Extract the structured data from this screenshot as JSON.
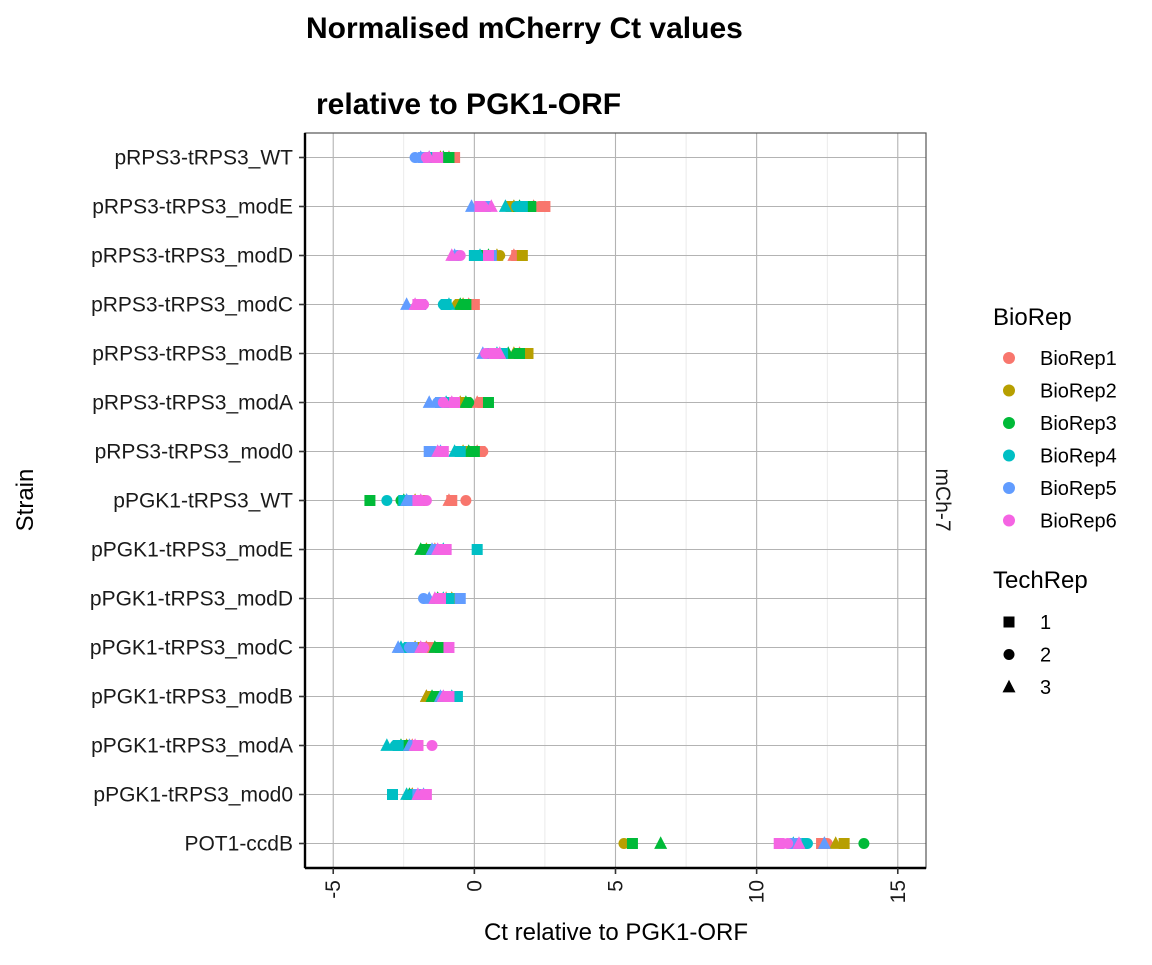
{
  "chart_data": {
    "type": "scatter",
    "title_lines": [
      "Normalised mCherry Ct values",
      "relative to PGK1-ORF"
    ],
    "xlabel": "Ct relative to PGK1-ORF",
    "ylabel": "Strain",
    "facet_label": "mCh-7",
    "xlim": [
      -6,
      16
    ],
    "x_ticks": [
      -5,
      0,
      5,
      10,
      15
    ],
    "x_tick_labels": [
      "-5",
      "0",
      "5",
      "10",
      "15"
    ],
    "grid": true,
    "legend_placement": "right",
    "categories": [
      "pRPS3-tRPS3_WT",
      "pRPS3-tRPS3_modE",
      "pRPS3-tRPS3_modD",
      "pRPS3-tRPS3_modC",
      "pRPS3-tRPS3_modB",
      "pRPS3-tRPS3_modA",
      "pRPS3-tRPS3_mod0",
      "pPGK1-tRPS3_WT",
      "pPGK1-tRPS3_modE",
      "pPGK1-tRPS3_modD",
      "pPGK1-tRPS3_modC",
      "pPGK1-tRPS3_modB",
      "pPGK1-tRPS3_modA",
      "pPGK1-tRPS3_mod0",
      "POT1-ccdB"
    ],
    "biorep_legend": {
      "title": "BioRep",
      "entries": [
        {
          "name": "BioRep1",
          "color": "#F8766D"
        },
        {
          "name": "BioRep2",
          "color": "#B79F00"
        },
        {
          "name": "BioRep3",
          "color": "#00BA38"
        },
        {
          "name": "BioRep4",
          "color": "#00BFC4"
        },
        {
          "name": "BioRep5",
          "color": "#619CFF"
        },
        {
          "name": "BioRep6",
          "color": "#F564E3"
        }
      ]
    },
    "techrep_legend": {
      "title": "TechRep",
      "entries": [
        {
          "name": "1",
          "shape": "square"
        },
        {
          "name": "2",
          "shape": "circle"
        },
        {
          "name": "3",
          "shape": "triangle"
        }
      ]
    },
    "series": [
      {
        "name": "BioRep1",
        "points": [
          {
            "strain": "pRPS3-tRPS3_WT",
            "x": [
              -0.7,
              -0.8,
              -0.9
            ]
          },
          {
            "strain": "pRPS3-tRPS3_modE",
            "x": [
              2.5,
              2.3,
              2.1
            ]
          },
          {
            "strain": "pRPS3-tRPS3_modD",
            "x": [
              1.5,
              1.6,
              1.4
            ]
          },
          {
            "strain": "pRPS3-tRPS3_modC",
            "x": [
              0.0,
              -0.1,
              -0.2
            ]
          },
          {
            "strain": "pRPS3-tRPS3_modB",
            "x": [
              1.8,
              1.7,
              1.6
            ]
          },
          {
            "strain": "pRPS3-tRPS3_modA",
            "x": [
              0.3,
              0.2,
              0.1
            ]
          },
          {
            "strain": "pRPS3-tRPS3_mod0",
            "x": [
              0.2,
              0.3,
              0.1
            ]
          },
          {
            "strain": "pPGK1-tRPS3_WT",
            "x": [
              -0.8,
              -0.3,
              -0.9
            ]
          },
          {
            "strain": "pPGK1-tRPS3_modE",
            "x": [
              -1.2,
              -1.3,
              -1.4
            ]
          },
          {
            "strain": "pPGK1-tRPS3_modD",
            "x": [
              -0.8,
              -0.9,
              -1.0
            ]
          },
          {
            "strain": "pPGK1-tRPS3_modC",
            "x": [
              -1.5,
              -1.6,
              -1.7
            ]
          },
          {
            "strain": "pPGK1-tRPS3_modB",
            "x": [
              -1.5,
              -1.6,
              -1.7
            ]
          },
          {
            "strain": "pPGK1-tRPS3_modA",
            "x": [
              -2.0,
              -2.1,
              -2.2
            ]
          },
          {
            "strain": "pPGK1-tRPS3_mod0",
            "x": [
              -2.0,
              -2.1,
              -2.2
            ]
          },
          {
            "strain": "POT1-ccdB",
            "x": [
              12.3,
              12.5,
              12.4
            ]
          }
        ]
      },
      {
        "name": "BioRep2",
        "points": [
          {
            "strain": "pRPS3-tRPS3_WT",
            "x": [
              -1.0,
              -1.1,
              -1.2
            ]
          },
          {
            "strain": "pRPS3-tRPS3_modE",
            "x": [
              1.3,
              1.2,
              1.4
            ]
          },
          {
            "strain": "pRPS3-tRPS3_modD",
            "x": [
              1.7,
              0.9,
              0.8
            ]
          },
          {
            "strain": "pRPS3-tRPS3_modC",
            "x": [
              -0.5,
              -0.6,
              -0.4
            ]
          },
          {
            "strain": "pRPS3-tRPS3_modB",
            "x": [
              1.9,
              1.5,
              1.4
            ]
          },
          {
            "strain": "pRPS3-tRPS3_modA",
            "x": [
              -0.3,
              -0.4,
              -0.5
            ]
          },
          {
            "strain": "pRPS3-tRPS3_mod0",
            "x": [
              -0.2,
              -0.3,
              -0.4
            ]
          },
          {
            "strain": "pPGK1-tRPS3_WT",
            "x": [
              -1.9,
              -2.0,
              -2.1
            ]
          },
          {
            "strain": "pPGK1-tRPS3_modE",
            "x": [
              -1.5,
              -1.6,
              -1.7
            ]
          },
          {
            "strain": "pPGK1-tRPS3_modD",
            "x": [
              -0.6,
              -0.7,
              -0.8
            ]
          },
          {
            "strain": "pPGK1-tRPS3_modC",
            "x": [
              -1.9,
              -2.0,
              -2.1
            ]
          },
          {
            "strain": "pPGK1-tRPS3_modB",
            "x": [
              -1.5,
              -1.6,
              -1.7
            ]
          },
          {
            "strain": "pPGK1-tRPS3_modA",
            "x": [
              -2.2,
              -2.3,
              -2.4
            ]
          },
          {
            "strain": "pPGK1-tRPS3_mod0",
            "x": [
              -2.0,
              -2.1,
              -2.2
            ]
          },
          {
            "strain": "POT1-ccdB",
            "x": [
              13.1,
              5.3,
              12.8
            ]
          }
        ]
      },
      {
        "name": "BioRep3",
        "points": [
          {
            "strain": "pRPS3-tRPS3_WT",
            "x": [
              -0.9,
              -1.0,
              -1.1
            ]
          },
          {
            "strain": "pRPS3-tRPS3_modE",
            "x": [
              2.0,
              1.8,
              1.6
            ]
          },
          {
            "strain": "pRPS3-tRPS3_modD",
            "x": [
              0.3,
              0.4,
              0.5
            ]
          },
          {
            "strain": "pRPS3-tRPS3_modC",
            "x": [
              -0.3,
              -0.4,
              -0.5
            ]
          },
          {
            "strain": "pRPS3-tRPS3_modB",
            "x": [
              1.6,
              1.5,
              1.2
            ]
          },
          {
            "strain": "pRPS3-tRPS3_modA",
            "x": [
              0.5,
              -0.2,
              -0.3
            ]
          },
          {
            "strain": "pRPS3-tRPS3_mod0",
            "x": [
              0.0,
              -0.1,
              -0.2
            ]
          },
          {
            "strain": "pPGK1-tRPS3_WT",
            "x": [
              -3.7,
              -2.6,
              -2.5
            ]
          },
          {
            "strain": "pPGK1-tRPS3_modE",
            "x": [
              -1.7,
              -1.8,
              -1.9
            ]
          },
          {
            "strain": "pPGK1-tRPS3_modD",
            "x": [
              -1.1,
              -1.2,
              -1.3
            ]
          },
          {
            "strain": "pPGK1-tRPS3_modC",
            "x": [
              -1.2,
              -1.3,
              -1.4
            ]
          },
          {
            "strain": "pPGK1-tRPS3_modB",
            "x": [
              -1.3,
              -1.4,
              -1.5
            ]
          },
          {
            "strain": "pPGK1-tRPS3_modA",
            "x": [
              -2.4,
              -2.5,
              -2.6
            ]
          },
          {
            "strain": "pPGK1-tRPS3_mod0",
            "x": [
              -2.1,
              -2.2,
              -2.3
            ]
          },
          {
            "strain": "POT1-ccdB",
            "x": [
              5.6,
              13.8,
              6.6
            ]
          }
        ]
      },
      {
        "name": "BioRep4",
        "points": [
          {
            "strain": "pRPS3-tRPS3_WT",
            "x": [
              -1.4,
              -1.5,
              -1.6
            ]
          },
          {
            "strain": "pRPS3-tRPS3_modE",
            "x": [
              1.7,
              1.5,
              1.1
            ]
          },
          {
            "strain": "pRPS3-tRPS3_modD",
            "x": [
              0.0,
              0.1,
              0.2
            ]
          },
          {
            "strain": "pRPS3-tRPS3_modC",
            "x": [
              -1.0,
              -1.1,
              -0.9
            ]
          },
          {
            "strain": "pRPS3-tRPS3_modB",
            "x": [
              1.0,
              0.9,
              0.8
            ]
          },
          {
            "strain": "pRPS3-tRPS3_modA",
            "x": [
              -0.8,
              -0.9,
              -1.0
            ]
          },
          {
            "strain": "pRPS3-tRPS3_mod0",
            "x": [
              -0.5,
              -0.6,
              -0.7
            ]
          },
          {
            "strain": "pPGK1-tRPS3_WT",
            "x": [
              -2.5,
              -3.1,
              -2.4
            ]
          },
          {
            "strain": "pPGK1-tRPS3_modE",
            "x": [
              0.1,
              -1.0,
              -1.1
            ]
          },
          {
            "strain": "pPGK1-tRPS3_modD",
            "x": [
              -0.9,
              -1.0,
              -1.1
            ]
          },
          {
            "strain": "pPGK1-tRPS3_modC",
            "x": [
              -2.3,
              -2.4,
              -2.6
            ]
          },
          {
            "strain": "pPGK1-tRPS3_modB",
            "x": [
              -0.6,
              -0.7,
              -0.8
            ]
          },
          {
            "strain": "pPGK1-tRPS3_modA",
            "x": [
              -2.7,
              -2.8,
              -3.1
            ]
          },
          {
            "strain": "pPGK1-tRPS3_mod0",
            "x": [
              -2.9,
              -2.2,
              -2.4
            ]
          },
          {
            "strain": "POT1-ccdB",
            "x": [
              11.6,
              11.8,
              11.3
            ]
          }
        ]
      },
      {
        "name": "BioRep5",
        "points": [
          {
            "strain": "pRPS3-tRPS3_WT",
            "x": [
              -1.8,
              -2.1,
              -1.9
            ]
          },
          {
            "strain": "pRPS3-tRPS3_modE",
            "x": [
              0.4,
              0.3,
              -0.1
            ]
          },
          {
            "strain": "pRPS3-tRPS3_modD",
            "x": [
              0.6,
              -0.6,
              -0.7
            ]
          },
          {
            "strain": "pRPS3-tRPS3_modC",
            "x": [
              -1.9,
              -2.0,
              -2.4
            ]
          },
          {
            "strain": "pRPS3-tRPS3_modB",
            "x": [
              0.6,
              0.5,
              0.3
            ]
          },
          {
            "strain": "pRPS3-tRPS3_modA",
            "x": [
              -1.2,
              -1.3,
              -1.6
            ]
          },
          {
            "strain": "pRPS3-tRPS3_mod0",
            "x": [
              -1.6,
              -1.4,
              -1.2
            ]
          },
          {
            "strain": "pPGK1-tRPS3_WT",
            "x": [
              -2.2,
              -2.3,
              -2.4
            ]
          },
          {
            "strain": "pPGK1-tRPS3_modE",
            "x": [
              -1.3,
              -1.4,
              -1.5
            ]
          },
          {
            "strain": "pPGK1-tRPS3_modD",
            "x": [
              -0.5,
              -1.8,
              -1.6
            ]
          },
          {
            "strain": "pPGK1-tRPS3_modC",
            "x": [
              -2.2,
              -2.3,
              -2.7
            ]
          },
          {
            "strain": "pPGK1-tRPS3_modB",
            "x": [
              -1.0,
              -1.1,
              -1.2
            ]
          },
          {
            "strain": "pPGK1-tRPS3_modA",
            "x": [
              -2.1,
              -2.2,
              -2.3
            ]
          },
          {
            "strain": "pPGK1-tRPS3_mod0",
            "x": [
              -2.0,
              -1.9,
              -1.8
            ]
          },
          {
            "strain": "POT1-ccdB",
            "x": [
              11.4,
              11.2,
              12.4
            ]
          }
        ]
      },
      {
        "name": "BioRep6",
        "points": [
          {
            "strain": "pRPS3-tRPS3_WT",
            "x": [
              -1.3,
              -1.7,
              -1.6
            ]
          },
          {
            "strain": "pRPS3-tRPS3_modE",
            "x": [
              0.2,
              0.3,
              0.6
            ]
          },
          {
            "strain": "pRPS3-tRPS3_modD",
            "x": [
              0.5,
              -0.5,
              -0.8
            ]
          },
          {
            "strain": "pRPS3-tRPS3_modC",
            "x": [
              -2.0,
              -1.8,
              -2.1
            ]
          },
          {
            "strain": "pRPS3-tRPS3_modB",
            "x": [
              0.7,
              0.4,
              0.9
            ]
          },
          {
            "strain": "pRPS3-tRPS3_modA",
            "x": [
              -0.7,
              -1.1,
              -0.8
            ]
          },
          {
            "strain": "pRPS3-tRPS3_mod0",
            "x": [
              -1.1,
              -1.2,
              -1.3
            ]
          },
          {
            "strain": "pPGK1-tRPS3_WT",
            "x": [
              -2.0,
              -1.7,
              -1.9
            ]
          },
          {
            "strain": "pPGK1-tRPS3_modE",
            "x": [
              -1.0,
              -1.2,
              -1.3
            ]
          },
          {
            "strain": "pPGK1-tRPS3_modD",
            "x": [
              -1.2,
              -1.3,
              -1.4
            ]
          },
          {
            "strain": "pPGK1-tRPS3_modC",
            "x": [
              -0.9,
              -1.8,
              -1.9
            ]
          },
          {
            "strain": "pPGK1-tRPS3_modB",
            "x": [
              -0.9,
              -1.0,
              -1.1
            ]
          },
          {
            "strain": "pPGK1-tRPS3_modA",
            "x": [
              -2.0,
              -1.5,
              -2.1
            ]
          },
          {
            "strain": "pPGK1-tRPS3_mod0",
            "x": [
              -1.7,
              -1.8,
              -2.0
            ]
          },
          {
            "strain": "POT1-ccdB",
            "x": [
              10.8,
              11.1,
              11.5
            ]
          }
        ]
      }
    ]
  }
}
